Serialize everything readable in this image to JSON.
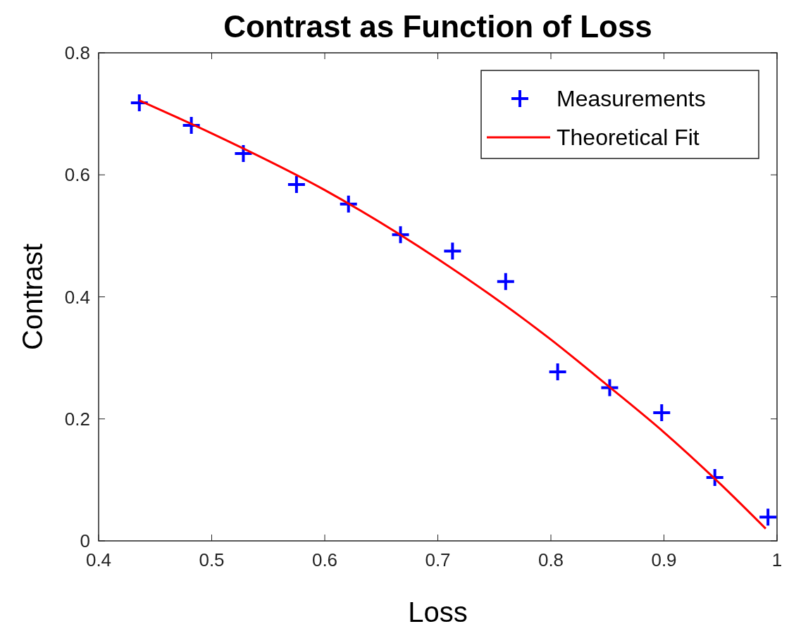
{
  "chart_data": {
    "type": "scatter",
    "title": "Contrast as Function of Loss",
    "xlabel": "Loss",
    "ylabel": "Contrast",
    "xlim": [
      0.4,
      1
    ],
    "xticks": [
      0.4,
      0.5,
      0.6,
      0.7,
      0.8,
      0.9,
      1
    ],
    "ylim": [
      0,
      0.8
    ],
    "yticks": [
      0,
      0.2,
      0.4,
      0.6,
      0.8
    ],
    "grid": false,
    "legend": "top right",
    "series": [
      {
        "name": "Measurements",
        "marker": "cross",
        "color": "#0000ff",
        "x": [
          0.436,
          0.482,
          0.528,
          0.575,
          0.621,
          0.667,
          0.713,
          0.76,
          0.806,
          0.852,
          0.898,
          0.945,
          0.992
        ],
        "values": [
          0.718,
          0.681,
          0.635,
          0.584,
          0.552,
          0.502,
          0.475,
          0.425,
          0.277,
          0.251,
          0.21,
          0.104,
          0.039
        ]
      },
      {
        "name": "Theoretical Fit",
        "type": "line",
        "color": "#ff0000",
        "x": [
          0.436,
          0.5,
          0.6,
          0.7,
          0.8,
          0.85,
          0.9,
          0.95,
          0.99
        ],
        "values": [
          0.722,
          0.668,
          0.575,
          0.462,
          0.33,
          0.255,
          0.178,
          0.093,
          0.02
        ]
      }
    ]
  }
}
